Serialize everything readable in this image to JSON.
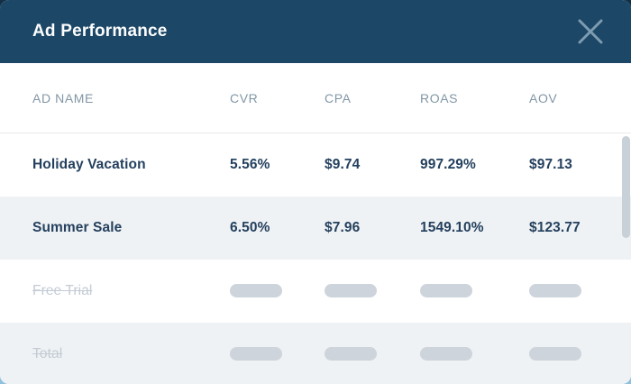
{
  "modal": {
    "title": "Ad Performance"
  },
  "colors": {
    "header_bg": "#1c4766",
    "backdrop": "#132f45",
    "backdrop_accent": "#8fc0dd",
    "row_alt_bg": "#eff2f4",
    "text_primary": "#24405e",
    "text_header": "#8297a6",
    "text_disabled": "#c4cbd4",
    "placeholder_pill": "#ced4db",
    "close_icon": "#7d9cb2",
    "scrollbar": "#c9d1d8"
  },
  "table": {
    "columns": [
      {
        "key": "name",
        "label": "AD NAME"
      },
      {
        "key": "cvr",
        "label": "CVR"
      },
      {
        "key": "cpa",
        "label": "CPA"
      },
      {
        "key": "roas",
        "label": "ROAS"
      },
      {
        "key": "aov",
        "label": "AOV"
      }
    ],
    "rows": [
      {
        "name": "Holiday Vacation",
        "cvr": "5.56%",
        "cpa": "$9.74",
        "roas": "997.29%",
        "aov": "$97.13",
        "disabled": false
      },
      {
        "name": "Summer Sale",
        "cvr": "6.50%",
        "cpa": "$7.96",
        "roas": "1549.10%",
        "aov": "$123.77",
        "disabled": false
      },
      {
        "name": "Free Trial",
        "cvr": null,
        "cpa": null,
        "roas": null,
        "aov": null,
        "disabled": true
      },
      {
        "name": "Total",
        "cvr": null,
        "cpa": null,
        "roas": null,
        "aov": null,
        "disabled": true
      }
    ]
  }
}
